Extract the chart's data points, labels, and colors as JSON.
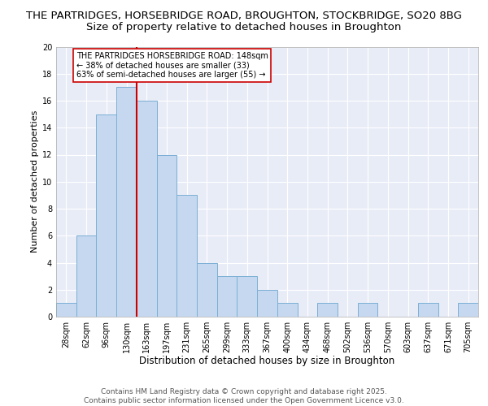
{
  "title_line1": "THE PARTRIDGES, HORSEBRIDGE ROAD, BROUGHTON, STOCKBRIDGE, SO20 8BG",
  "title_line2": "Size of property relative to detached houses in Broughton",
  "xlabel": "Distribution of detached houses by size in Broughton",
  "ylabel": "Number of detached properties",
  "bin_labels": [
    "28sqm",
    "62sqm",
    "96sqm",
    "130sqm",
    "163sqm",
    "197sqm",
    "231sqm",
    "265sqm",
    "299sqm",
    "333sqm",
    "367sqm",
    "400sqm",
    "434sqm",
    "468sqm",
    "502sqm",
    "536sqm",
    "570sqm",
    "603sqm",
    "637sqm",
    "671sqm",
    "705sqm"
  ],
  "bar_heights": [
    1,
    6,
    15,
    17,
    16,
    12,
    9,
    4,
    3,
    3,
    2,
    1,
    0,
    1,
    0,
    1,
    0,
    0,
    1,
    0,
    1
  ],
  "bar_color": "#C5D8F0",
  "bar_edge_color": "#7BAFD4",
  "bar_edge_width": 0.7,
  "vline_x": 3.5,
  "vline_color": "#CC0000",
  "annotation_text": "THE PARTRIDGES HORSEBRIDGE ROAD: 148sqm\n← 38% of detached houses are smaller (33)\n63% of semi-detached houses are larger (55) →",
  "annotation_box_color": "#FFFFFF",
  "annotation_box_edge": "#CC0000",
  "ylim": [
    0,
    20
  ],
  "yticks": [
    0,
    2,
    4,
    6,
    8,
    10,
    12,
    14,
    16,
    18,
    20
  ],
  "ax_facecolor": "#E8ECF7",
  "grid_color": "#FFFFFF",
  "footer_text": "Contains HM Land Registry data © Crown copyright and database right 2025.\nContains public sector information licensed under the Open Government Licence v3.0.",
  "title_fontsize": 9.5,
  "subtitle_fontsize": 9.5,
  "xlabel_fontsize": 8.5,
  "ylabel_fontsize": 8,
  "tick_fontsize": 7,
  "annot_fontsize": 7,
  "footer_fontsize": 6.5
}
